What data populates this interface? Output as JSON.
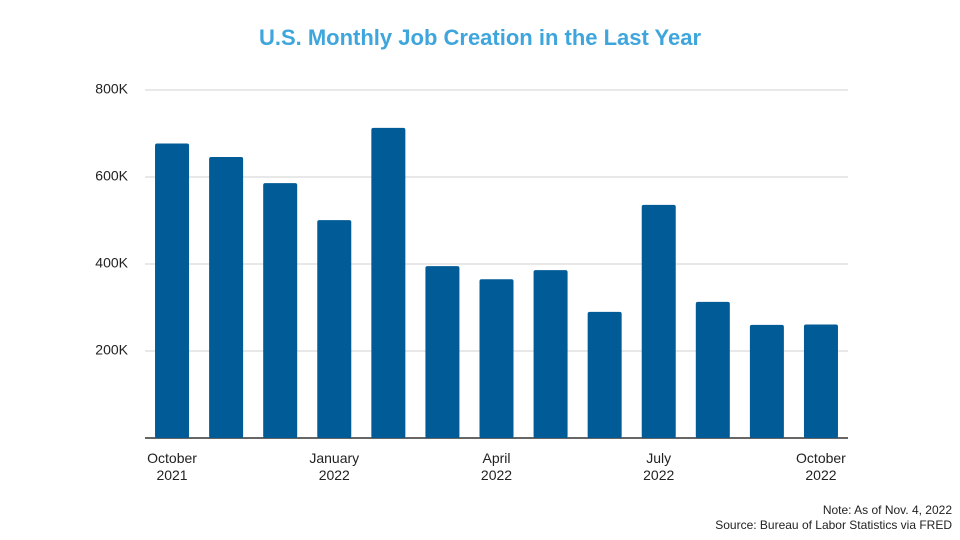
{
  "chart_data": {
    "type": "bar",
    "title": "U.S. Monthly Job Creation in the Last Year",
    "categories": [
      "October\n2021",
      null,
      null,
      "January\n2022",
      null,
      null,
      "April\n2022",
      null,
      null,
      "July\n2022",
      null,
      null,
      "October\n2022"
    ],
    "values": [
      677000,
      646000,
      586000,
      501000,
      713000,
      395000,
      365000,
      386000,
      290000,
      536000,
      313000,
      260000,
      261000
    ],
    "color": "#005b96",
    "ylim": [
      0,
      800000
    ],
    "yticks": [
      {
        "value": 200000,
        "label": "200K"
      },
      {
        "value": 400000,
        "label": "400K"
      },
      {
        "value": 600000,
        "label": "600K"
      },
      {
        "value": 800000,
        "label": "800K"
      }
    ],
    "grid": true,
    "notes": [
      "Note: As of Nov. 4, 2022",
      "Source: Bureau of Labor Statistics via FRED"
    ]
  }
}
